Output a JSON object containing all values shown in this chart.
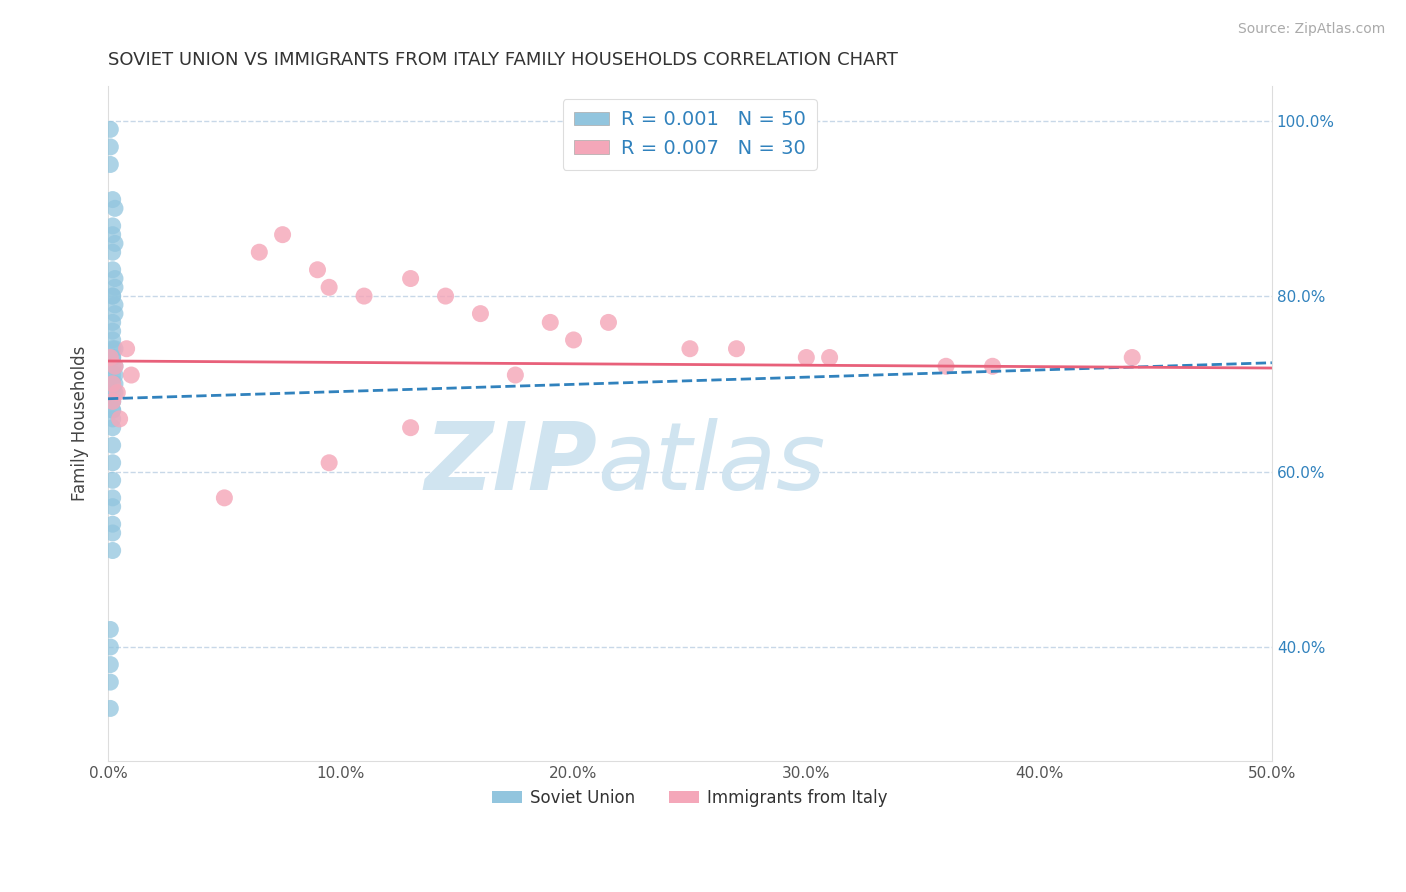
{
  "title": "SOVIET UNION VS IMMIGRANTS FROM ITALY FAMILY HOUSEHOLDS CORRELATION CHART",
  "source": "Source: ZipAtlas.com",
  "ylabel": "Family Households",
  "xlim": [
    0.0,
    0.5
  ],
  "ylim": [
    0.27,
    1.04
  ],
  "xticks": [
    0.0,
    0.1,
    0.2,
    0.3,
    0.4,
    0.5
  ],
  "xtick_labels": [
    "0.0%",
    "10.0%",
    "20.0%",
    "30.0%",
    "40.0%",
    "50.0%"
  ],
  "yticks": [
    0.4,
    0.6,
    0.8,
    1.0
  ],
  "ytick_labels": [
    "40.0%",
    "60.0%",
    "80.0%",
    "100.0%"
  ],
  "legend1_label": "R = 0.001   N = 50",
  "legend2_label": "R = 0.007   N = 30",
  "legend_bottom_label1": "Soviet Union",
  "legend_bottom_label2": "Immigrants from Italy",
  "blue_color": "#92c5de",
  "pink_color": "#f4a7b9",
  "blue_line_color": "#3182bd",
  "pink_line_color": "#e8607a",
  "tick_label_color": "#3182bd",
  "background_color": "#ffffff",
  "grid_color": "#c8d8e8",
  "watermark_color": "#d0e4f0",
  "soviet_x": [
    0.001,
    0.001,
    0.001,
    0.002,
    0.003,
    0.002,
    0.002,
    0.003,
    0.002,
    0.002,
    0.003,
    0.003,
    0.002,
    0.002,
    0.003,
    0.003,
    0.002,
    0.002,
    0.002,
    0.003,
    0.002,
    0.002,
    0.002,
    0.002,
    0.003,
    0.003,
    0.002,
    0.002,
    0.003,
    0.003,
    0.002,
    0.002,
    0.002,
    0.002,
    0.002,
    0.002,
    0.002,
    0.002,
    0.002,
    0.002,
    0.002,
    0.002,
    0.002,
    0.002,
    0.002,
    0.001,
    0.001,
    0.001,
    0.001,
    0.001
  ],
  "soviet_y": [
    0.99,
    0.97,
    0.95,
    0.91,
    0.9,
    0.88,
    0.87,
    0.86,
    0.85,
    0.83,
    0.82,
    0.81,
    0.8,
    0.8,
    0.79,
    0.78,
    0.77,
    0.76,
    0.75,
    0.74,
    0.74,
    0.73,
    0.73,
    0.72,
    0.72,
    0.71,
    0.71,
    0.7,
    0.7,
    0.69,
    0.69,
    0.68,
    0.68,
    0.67,
    0.67,
    0.66,
    0.65,
    0.63,
    0.61,
    0.59,
    0.57,
    0.56,
    0.54,
    0.53,
    0.51,
    0.42,
    0.4,
    0.38,
    0.36,
    0.33
  ],
  "italy_x": [
    0.001,
    0.002,
    0.002,
    0.003,
    0.004,
    0.005,
    0.008,
    0.01,
    0.065,
    0.075,
    0.09,
    0.095,
    0.11,
    0.13,
    0.145,
    0.16,
    0.19,
    0.215,
    0.25,
    0.27,
    0.3,
    0.31,
    0.36,
    0.38,
    0.2,
    0.175,
    0.13,
    0.095,
    0.05,
    0.44
  ],
  "italy_y": [
    0.73,
    0.7,
    0.68,
    0.72,
    0.69,
    0.66,
    0.74,
    0.71,
    0.85,
    0.87,
    0.83,
    0.81,
    0.8,
    0.82,
    0.8,
    0.78,
    0.77,
    0.77,
    0.74,
    0.74,
    0.73,
    0.73,
    0.72,
    0.72,
    0.75,
    0.71,
    0.65,
    0.61,
    0.57,
    0.73
  ],
  "soviet_trend_x": [
    0.0,
    0.5
  ],
  "soviet_trend_y": [
    0.683,
    0.724
  ],
  "italy_trend_x": [
    0.0,
    0.5
  ],
  "italy_trend_y": [
    0.726,
    0.718
  ]
}
